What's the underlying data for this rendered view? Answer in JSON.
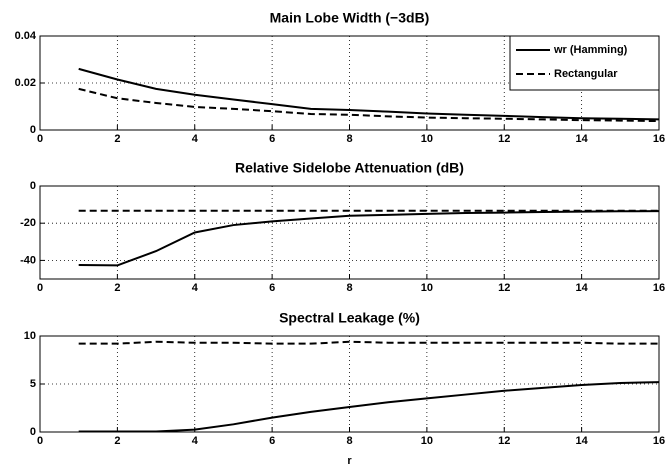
{
  "chart_data": [
    {
      "type": "line",
      "title": "Main Lobe Width (−3dB)",
      "x": [
        1,
        2,
        3,
        4,
        5,
        6,
        7,
        8,
        9,
        10,
        11,
        12,
        13,
        14,
        15,
        16
      ],
      "series": [
        {
          "name": "wr (Hamming)",
          "color": "#000000",
          "linestyle": "solid",
          "values": [
            0.026,
            0.0215,
            0.0175,
            0.015,
            0.013,
            0.011,
            0.009,
            0.0085,
            0.0078,
            0.007,
            0.0065,
            0.006,
            0.0055,
            0.005,
            0.0048,
            0.0045
          ]
        },
        {
          "name": "Rectangular",
          "color": "#000000",
          "linestyle": "dashed",
          "values": [
            0.0175,
            0.0135,
            0.0115,
            0.0098,
            0.009,
            0.008,
            0.0068,
            0.0065,
            0.0058,
            0.0053,
            0.005,
            0.0048,
            0.0045,
            0.0042,
            0.004,
            0.0038
          ]
        }
      ],
      "xlim": [
        0,
        16
      ],
      "xticks": [
        0,
        2,
        4,
        6,
        8,
        10,
        12,
        14,
        16
      ],
      "ylim": [
        0,
        0.04
      ],
      "yticks": [
        0,
        0.02,
        0.04
      ],
      "grid": true,
      "legend": "upper right"
    },
    {
      "type": "line",
      "title": "Relative Sidelobe Attenuation (dB)",
      "x": [
        1,
        2,
        3,
        4,
        5,
        6,
        7,
        8,
        9,
        10,
        11,
        12,
        13,
        14,
        15,
        16
      ],
      "series": [
        {
          "color": "#000000",
          "linestyle": "solid",
          "values": [
            -42.5,
            -42.7,
            -35,
            -25,
            -21,
            -19,
            -17.5,
            -16,
            -15.5,
            -15,
            -14.5,
            -14.3,
            -14,
            -13.8,
            -13.6,
            -13.5
          ]
        },
        {
          "color": "#000000",
          "linestyle": "dashed",
          "values": [
            -13.3,
            -13.3,
            -13.3,
            -13.3,
            -13.3,
            -13.3,
            -13.3,
            -13.3,
            -13.3,
            -13.3,
            -13.3,
            -13.3,
            -13.3,
            -13.3,
            -13.3,
            -13.3
          ]
        }
      ],
      "xlim": [
        0,
        16
      ],
      "xticks": [
        0,
        2,
        4,
        6,
        8,
        10,
        12,
        14,
        16
      ],
      "ylim": [
        -50,
        0
      ],
      "yticks": [
        -40,
        -20,
        0
      ],
      "grid": true
    },
    {
      "type": "line",
      "title": "Spectral Leakage (%)",
      "xlabel": "r",
      "x": [
        1,
        2,
        3,
        4,
        5,
        6,
        7,
        8,
        9,
        10,
        11,
        12,
        13,
        14,
        15,
        16
      ],
      "series": [
        {
          "color": "#000000",
          "linestyle": "solid",
          "values": [
            0.05,
            0.05,
            0.05,
            0.25,
            0.8,
            1.5,
            2.1,
            2.6,
            3.1,
            3.5,
            3.9,
            4.3,
            4.6,
            4.9,
            5.1,
            5.2
          ]
        },
        {
          "color": "#000000",
          "linestyle": "dashed",
          "values": [
            9.2,
            9.2,
            9.4,
            9.3,
            9.3,
            9.2,
            9.2,
            9.4,
            9.3,
            9.3,
            9.3,
            9.3,
            9.3,
            9.3,
            9.2,
            9.2
          ]
        }
      ],
      "xlim": [
        0,
        16
      ],
      "xticks": [
        0,
        2,
        4,
        6,
        8,
        10,
        12,
        14,
        16
      ],
      "ylim": [
        0,
        10
      ],
      "yticks": [
        0,
        5,
        10
      ],
      "grid": true
    }
  ]
}
